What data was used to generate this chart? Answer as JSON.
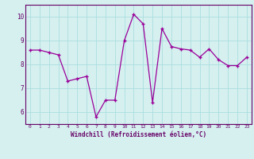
{
  "x": [
    0,
    1,
    2,
    3,
    4,
    5,
    6,
    7,
    8,
    9,
    10,
    11,
    12,
    13,
    14,
    15,
    16,
    17,
    18,
    19,
    20,
    21,
    22,
    23
  ],
  "y": [
    8.6,
    8.6,
    8.5,
    8.4,
    7.3,
    7.4,
    7.5,
    5.8,
    6.5,
    6.5,
    9.0,
    10.1,
    9.7,
    6.4,
    9.5,
    8.75,
    8.65,
    8.6,
    8.3,
    8.65,
    8.2,
    7.95,
    7.95,
    8.3
  ],
  "xlabel": "Windchill (Refroidissement éolien,°C)",
  "ylabel": "",
  "ylim": [
    5.5,
    10.5
  ],
  "xlim": [
    -0.5,
    23.5
  ],
  "yticks": [
    6,
    7,
    8,
    9,
    10
  ],
  "xticks": [
    0,
    1,
    2,
    3,
    4,
    5,
    6,
    7,
    8,
    9,
    10,
    11,
    12,
    13,
    14,
    15,
    16,
    17,
    18,
    19,
    20,
    21,
    22,
    23
  ],
  "line_color": "#990099",
  "marker": "+",
  "bg_color": "#d6f0f0",
  "grid_color": "#aadddd",
  "label_color": "#660066",
  "tick_color": "#660066",
  "spine_color": "#660066"
}
